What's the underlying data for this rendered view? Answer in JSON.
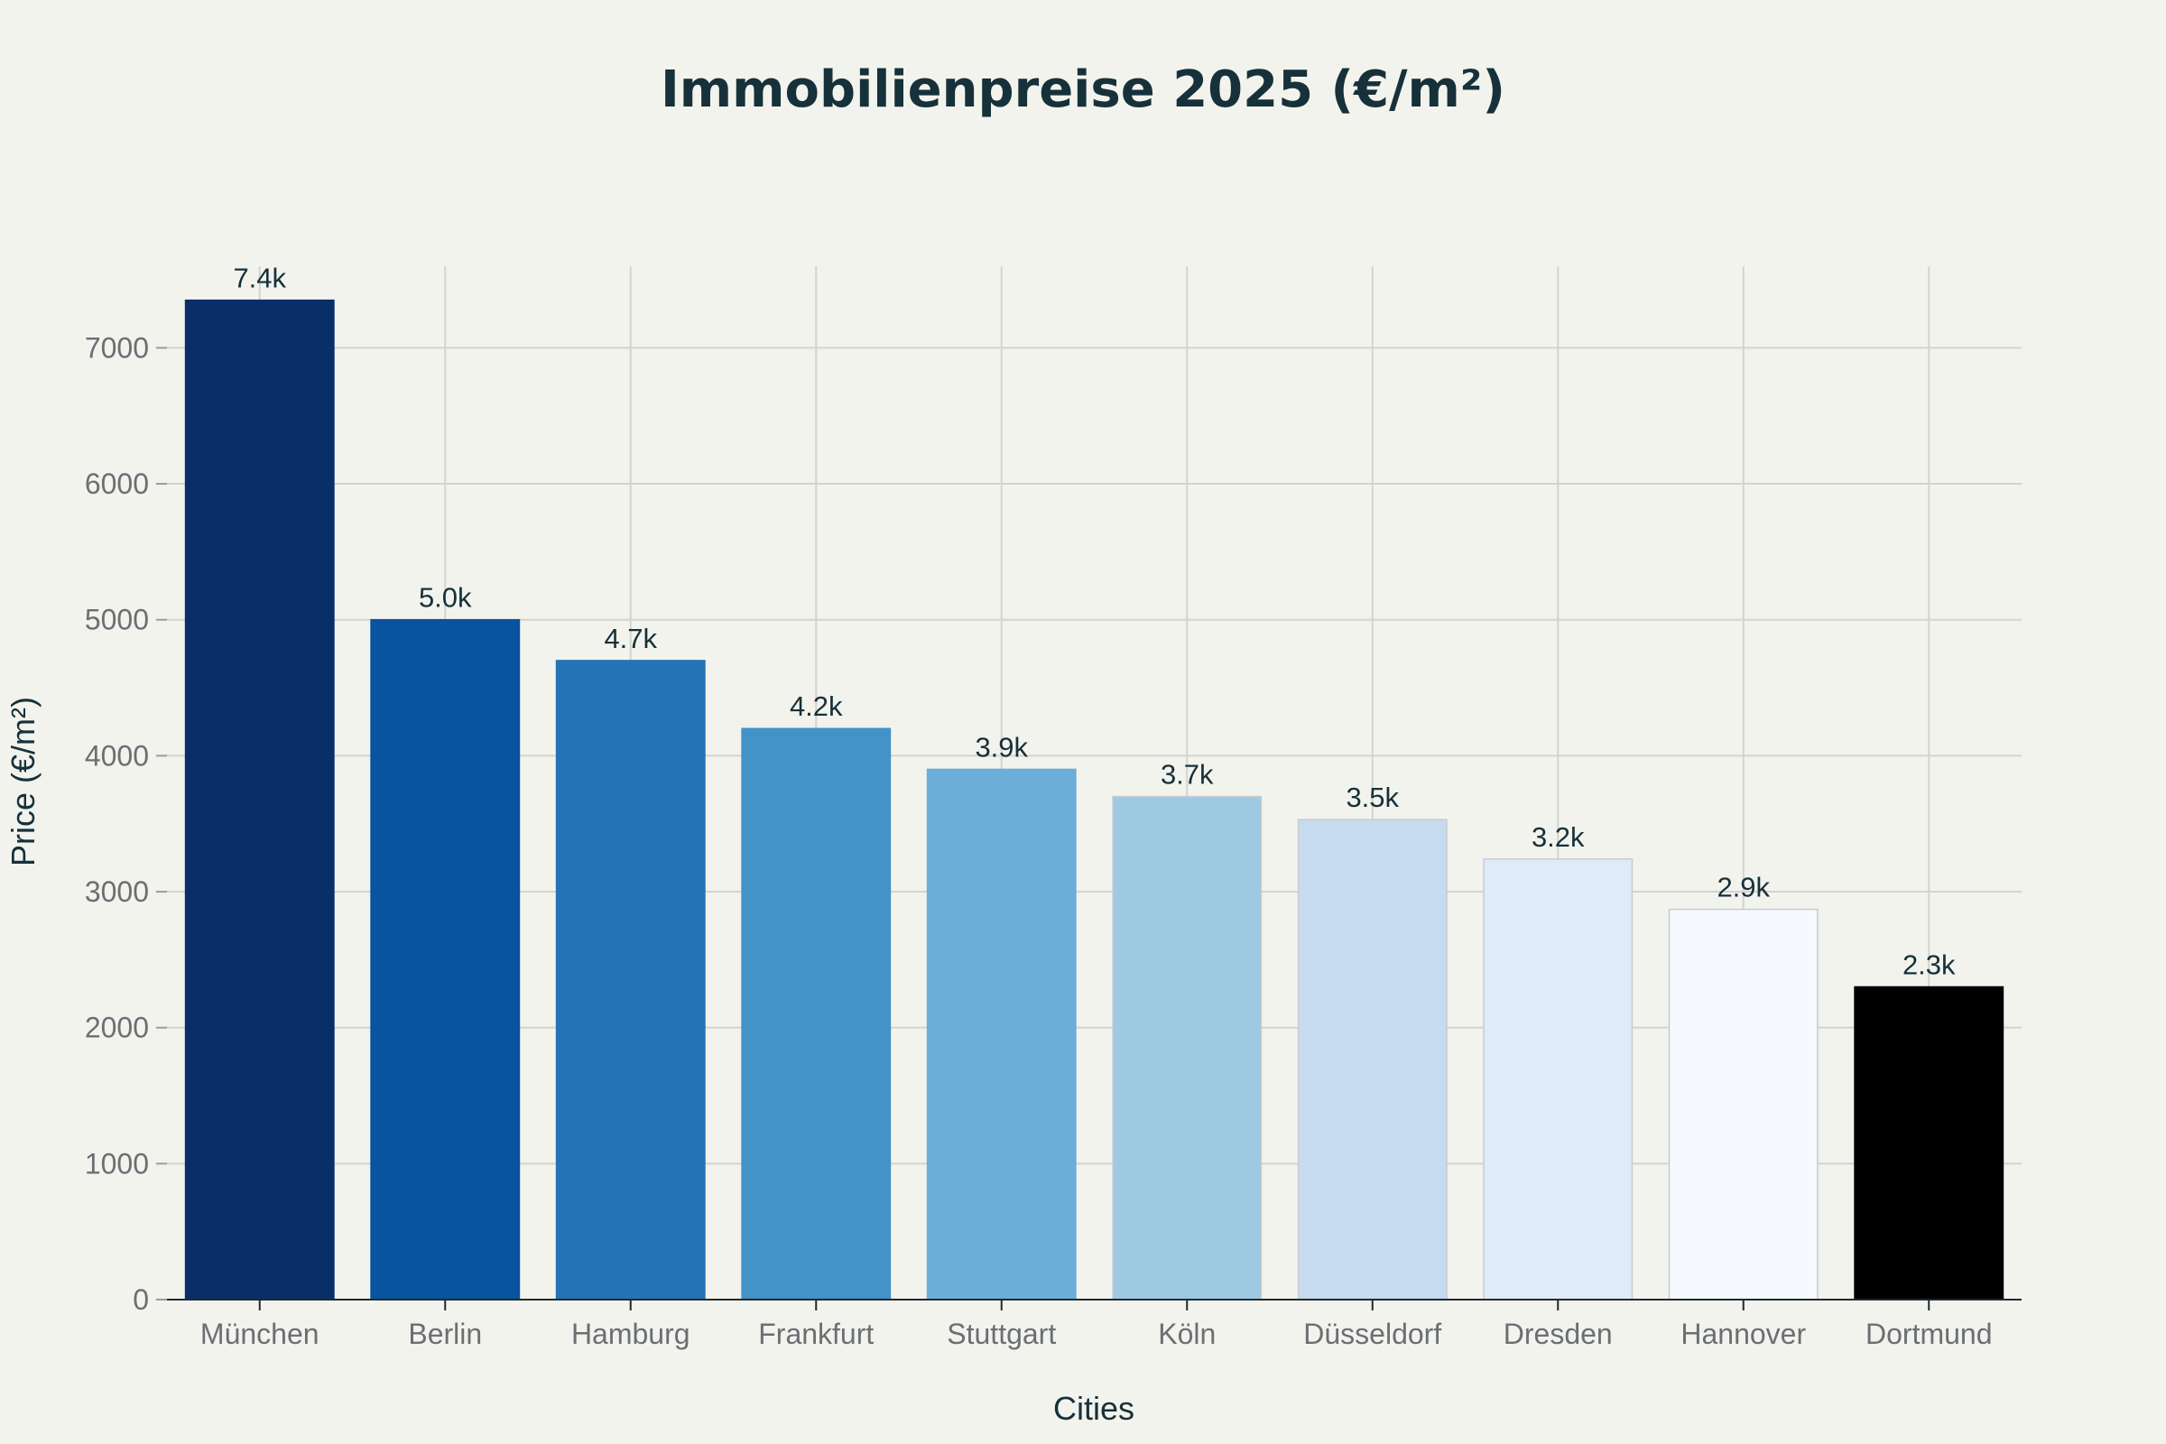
{
  "chart_data": {
    "type": "bar",
    "title": "Immobilienpreise 2025 (€/m²)",
    "xlabel": "Cities",
    "ylabel": "Price (€/m²)",
    "categories": [
      "München",
      "Berlin",
      "Hamburg",
      "Frankfurt",
      "Stuttgart",
      "Köln",
      "Düsseldorf",
      "Dresden",
      "Hannover",
      "Dortmund"
    ],
    "values": [
      7350,
      5000,
      4700,
      4200,
      3900,
      3700,
      3530,
      3240,
      2870,
      2300
    ],
    "data_labels": [
      "7.4k",
      "5.0k",
      "4.7k",
      "4.2k",
      "3.9k",
      "3.7k",
      "3.5k",
      "3.2k",
      "2.9k",
      "2.3k"
    ],
    "bar_colors": [
      "#0a2f68",
      "#0a539e",
      "#2373b6",
      "#4393c8",
      "#6caed8",
      "#9ec9e2",
      "#c6dbf0",
      "#dfebf7",
      "#f6f9fd",
      "#000000"
    ],
    "ylim": [
      0,
      7600
    ],
    "yticks": [
      0,
      1000,
      2000,
      3000,
      4000,
      5000,
      6000,
      7000
    ],
    "grid": true,
    "legend": "none"
  }
}
